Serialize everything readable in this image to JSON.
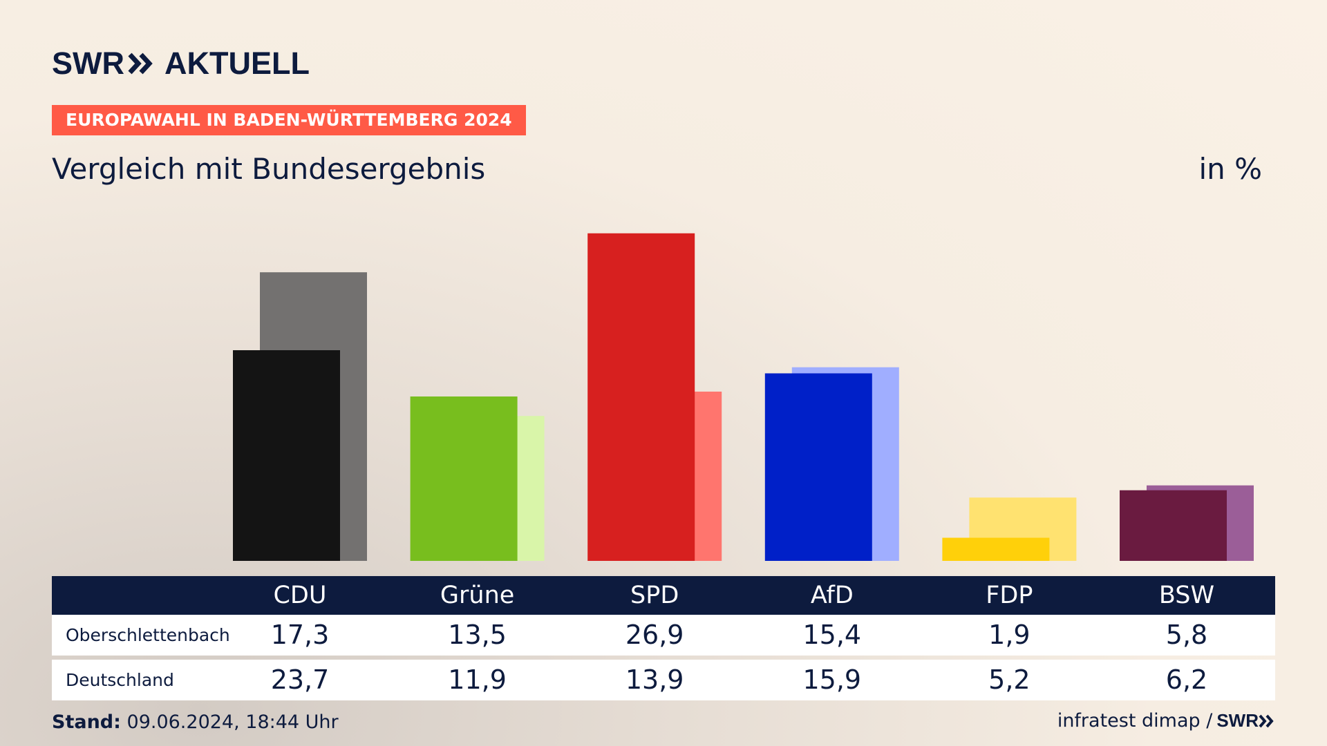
{
  "brand": {
    "left": "SWR",
    "right": "AKTUELL"
  },
  "kicker": "EUROPAWAHL IN BADEN-WÜRTTEMBERG 2024",
  "headline": "Vergleich mit Bundesergebnis",
  "unit": "in %",
  "table": {
    "rows": [
      {
        "label": "Oberschlettenbach",
        "values": [
          "17,3",
          "13,5",
          "26,9",
          "15,4",
          "1,9",
          "5,8"
        ]
      },
      {
        "label": "Deutschland",
        "values": [
          "23,7",
          "11,9",
          "13,9",
          "15,9",
          "5,2",
          "6,2"
        ]
      }
    ]
  },
  "footer": {
    "stand_label": "Stand:",
    "stand_value": "09.06.2024, 18:44 Uhr",
    "source": "infratest dimap /",
    "source_logo": "SWR"
  },
  "chart_data": {
    "type": "bar",
    "categories": [
      "CDU",
      "Grüne",
      "SPD",
      "AfD",
      "FDP",
      "BSW"
    ],
    "series": [
      {
        "name": "Oberschlettenbach",
        "values": [
          17.3,
          13.5,
          26.9,
          15.4,
          1.9,
          5.8
        ],
        "colors": [
          "#141414",
          "#78be1e",
          "#d7201f",
          "#0020c8",
          "#ffd00a",
          "#6a1b40"
        ]
      },
      {
        "name": "Deutschland",
        "values": [
          23.7,
          11.9,
          13.9,
          15.9,
          5.2,
          6.2
        ],
        "colors": [
          "#737170",
          "#d9f5a9",
          "#ff756e",
          "#a0aeff",
          "#ffe270",
          "#9b5e98"
        ]
      }
    ],
    "ylim": [
      0,
      28
    ],
    "grid": false,
    "legend": "table-below"
  }
}
